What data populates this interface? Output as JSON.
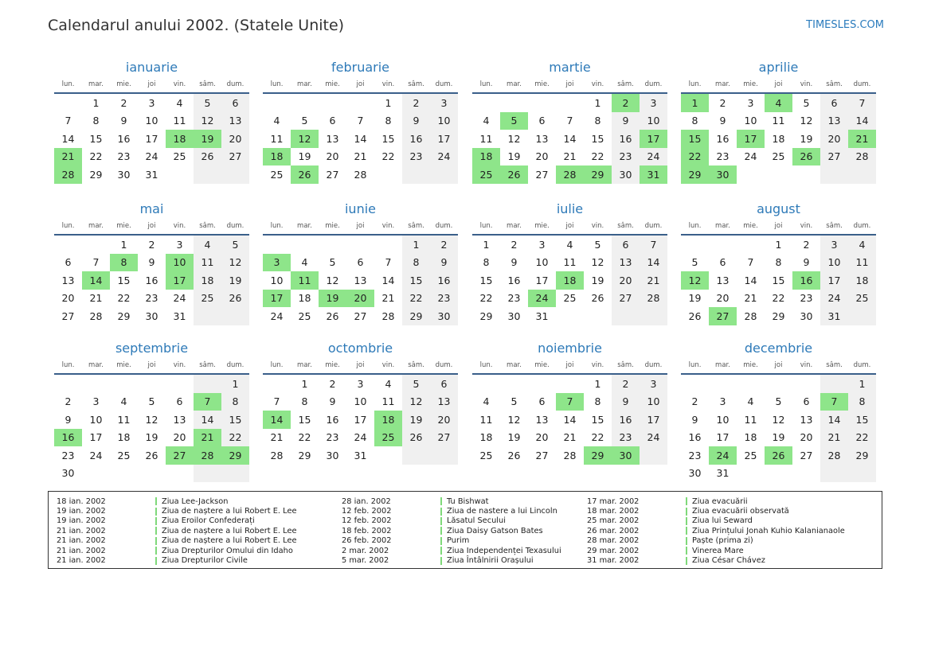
{
  "title": "Calendarul anului 2002. (Statele Unite)",
  "site": "TIMESLES.COM",
  "colors": {
    "holiday": "#8ee58a",
    "weekend": "#f0f0f0",
    "month_name": "#2e7ab8"
  },
  "weekdays": [
    "lun.",
    "mar.",
    "mie.",
    "joi",
    "vin.",
    "sâm.",
    "dum."
  ],
  "months": [
    {
      "name": "ianuarie",
      "offset": 1,
      "days": 31,
      "holidays": [
        18,
        19,
        21,
        28
      ]
    },
    {
      "name": "februarie",
      "offset": 4,
      "days": 28,
      "holidays": [
        12,
        18,
        26
      ]
    },
    {
      "name": "martie",
      "offset": 4,
      "days": 31,
      "holidays": [
        2,
        5,
        17,
        18,
        25,
        26,
        28,
        29,
        31
      ]
    },
    {
      "name": "aprilie",
      "offset": 0,
      "days": 30,
      "holidays": [
        1,
        4,
        15,
        17,
        21,
        26,
        22,
        29,
        30
      ]
    },
    {
      "name": "mai",
      "offset": 2,
      "days": 31,
      "holidays": [
        8,
        10,
        14,
        17
      ]
    },
    {
      "name": "iunie",
      "offset": 5,
      "days": 30,
      "holidays": [
        3,
        11,
        17,
        19,
        20
      ]
    },
    {
      "name": "iulie",
      "offset": 0,
      "days": 31,
      "holidays": [
        18,
        24
      ]
    },
    {
      "name": "august",
      "offset": 3,
      "days": 31,
      "holidays": [
        12,
        16,
        27
      ]
    },
    {
      "name": "septembrie",
      "offset": 6,
      "days": 30,
      "holidays": [
        7,
        16,
        21,
        27,
        28,
        29
      ]
    },
    {
      "name": "octombrie",
      "offset": 1,
      "days": 31,
      "holidays": [
        14,
        18,
        25
      ]
    },
    {
      "name": "noiembrie",
      "offset": 4,
      "days": 30,
      "holidays": [
        7,
        29,
        30
      ]
    },
    {
      "name": "decembrie",
      "offset": 6,
      "days": 31,
      "holidays": [
        7,
        24,
        26
      ]
    }
  ],
  "legend": [
    [
      {
        "date": "18 ian. 2002",
        "name": "Ziua Lee-Jackson"
      },
      {
        "date": "19 ian. 2002",
        "name": "Ziua de naștere a lui Robert E. Lee"
      },
      {
        "date": "19 ian. 2002",
        "name": "Ziua Eroilor Confederați"
      },
      {
        "date": "21 ian. 2002",
        "name": "Ziua de naștere a lui Robert E. Lee"
      },
      {
        "date": "21 ian. 2002",
        "name": "Ziua de naștere a lui Robert E. Lee"
      },
      {
        "date": "21 ian. 2002",
        "name": "Ziua Drepturilor Omului din Idaho"
      },
      {
        "date": "21 ian. 2002",
        "name": "Ziua Drepturilor Civile"
      }
    ],
    [
      {
        "date": "28 ian. 2002",
        "name": "Tu Bishwat"
      },
      {
        "date": "12 feb. 2002",
        "name": "Ziua de nastere a lui Lincoln"
      },
      {
        "date": "12 feb. 2002",
        "name": "Lăsatul Secului"
      },
      {
        "date": "18 feb. 2002",
        "name": "Ziua Daisy Gatson Bates"
      },
      {
        "date": "26 feb. 2002",
        "name": "Purim"
      },
      {
        "date": "2 mar. 2002",
        "name": "Ziua Independenței Texasului"
      },
      {
        "date": "5 mar. 2002",
        "name": "Ziua Întâlnirii Orașului"
      }
    ],
    [
      {
        "date": "17 mar. 2002",
        "name": "Ziua evacuării"
      },
      {
        "date": "18 mar. 2002",
        "name": "Ziua evacuării observată"
      },
      {
        "date": "25 mar. 2002",
        "name": "Ziua lui Seward"
      },
      {
        "date": "26 mar. 2002",
        "name": "Ziua Prințului Jonah Kuhio Kalanianaole"
      },
      {
        "date": "28 mar. 2002",
        "name": "Paște (prima zi)"
      },
      {
        "date": "29 mar. 2002",
        "name": "Vinerea Mare"
      },
      {
        "date": "31 mar. 2002",
        "name": "Ziua César Chávez"
      }
    ]
  ]
}
